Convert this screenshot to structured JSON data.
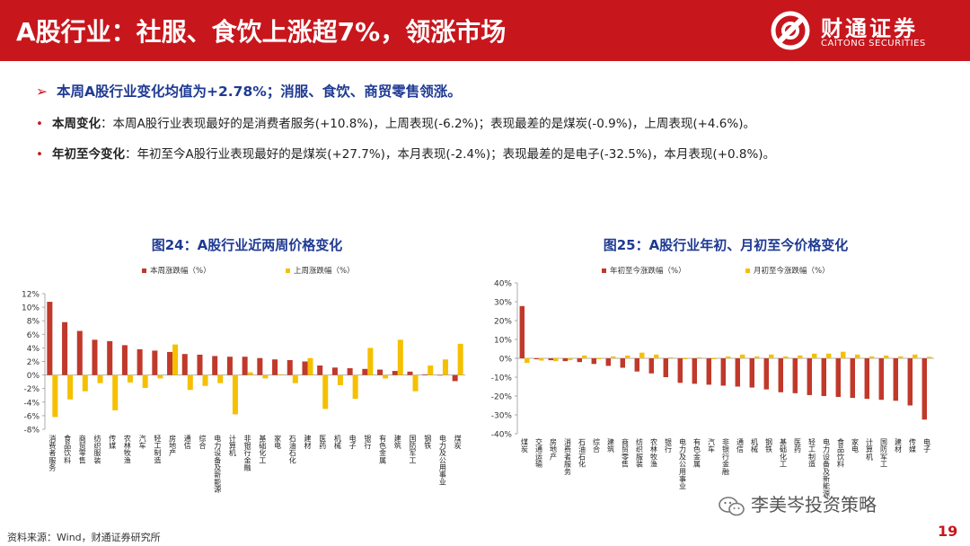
{
  "header": {
    "title": "A股行业：社服、食饮上涨超7%，领涨市场",
    "logo_cn": "财通证券",
    "logo_en": "CAITONG SECURITIES"
  },
  "summary": {
    "arrow": "➢",
    "text": "本周A股行业变化均值为+2.78%；消服、食饮、商贸零售领涨。"
  },
  "bullets": [
    {
      "dot": "•",
      "lead": "本周变化",
      "text": "：本周A股行业表现最好的是消费者服务(+10.8%)，上周表现(-6.2%)；表现最差的是煤炭(-0.9%)，上周表现(+4.6%)。"
    },
    {
      "dot": "•",
      "lead": "年初至今变化",
      "text": "：年初至今A股行业表现最好的是煤炭(+27.7%)，本月表现(-2.4%)；表现最差的是电子(-32.5%)，本月表现(+0.8%)。"
    }
  ],
  "colors": {
    "red": "#c0392b",
    "yellow": "#f5c000",
    "brand": "#c8161d",
    "title_blue": "#1f3a93"
  },
  "chart_data": [
    {
      "type": "bar",
      "title": "图24：A股行业近两周价格变化",
      "categories": [
        "消费者服务",
        "食品饮料",
        "商贸零售",
        "纺织服装",
        "传媒",
        "农林牧渔",
        "汽车",
        "轻工制造",
        "房地产",
        "通信",
        "综合",
        "电力设备及新能源",
        "计算机",
        "非银行金融",
        "基础化工",
        "家电",
        "石油石化",
        "建材",
        "医药",
        "机械",
        "电子",
        "银行",
        "有色金属",
        "建筑",
        "国防军工",
        "钢铁",
        "电力及公用事业",
        "煤炭"
      ],
      "series": [
        {
          "name": "本周涨跌幅（%）",
          "color": "#c0392b",
          "values": [
            10.8,
            7.8,
            6.5,
            5.2,
            5.0,
            4.4,
            3.8,
            3.6,
            3.4,
            3.1,
            3.0,
            2.8,
            2.7,
            2.7,
            2.5,
            2.3,
            2.2,
            2.0,
            1.4,
            1.1,
            1.0,
            0.9,
            0.8,
            0.6,
            0.5,
            0.1,
            0.0,
            -0.9
          ]
        },
        {
          "name": "上周涨跌幅（%）",
          "color": "#f5c000",
          "values": [
            -6.2,
            -3.6,
            -2.4,
            -1.2,
            -5.2,
            -1.1,
            -1.9,
            -0.5,
            4.5,
            -2.2,
            -1.6,
            -1.2,
            -5.8,
            0.4,
            -0.5,
            0.1,
            -1.2,
            2.5,
            -5.0,
            -1.5,
            -3.5,
            4.0,
            -0.5,
            5.2,
            -2.4,
            1.4,
            2.3,
            4.6
          ]
        }
      ],
      "yticks": [
        "12%",
        "10%",
        "8%",
        "6%",
        "4%",
        "2%",
        "0%",
        "-2%",
        "-4%",
        "-6%",
        "-8%"
      ],
      "ylim": [
        -8,
        12
      ]
    },
    {
      "type": "bar",
      "title": "图25：A股行业年初、月初至今价格变化",
      "categories": [
        "煤炭",
        "交通运输",
        "房地产",
        "消费者服务",
        "石油石化",
        "综合",
        "建筑",
        "商贸零售",
        "纺织服装",
        "农林牧渔",
        "银行",
        "电力及公用事业",
        "有色金属",
        "汽车",
        "非银行金融",
        "通信",
        "机械",
        "钢铁",
        "基础化工",
        "医药",
        "轻工制造",
        "电力设备及新能源",
        "食品饮料",
        "家电",
        "计算机",
        "国防军工",
        "建材",
        "传媒",
        "电子"
      ],
      "series": [
        {
          "name": "年初至今涨跌幅（%）",
          "color": "#c0392b",
          "values": [
            27.7,
            -0.5,
            -1.0,
            -1.5,
            -2.0,
            -3.0,
            -4.0,
            -5.0,
            -7.0,
            -8.0,
            -10.0,
            -13.0,
            -13.5,
            -14.0,
            -14.5,
            -15.0,
            -15.5,
            -16.5,
            -18.0,
            -18.5,
            -19.5,
            -20.0,
            -20.5,
            -21.0,
            -21.5,
            -22.0,
            -22.5,
            -25.0,
            -32.5
          ]
        },
        {
          "name": "月初至今涨跌幅（%）",
          "color": "#f5c000",
          "values": [
            -2.4,
            -1.2,
            -1.5,
            -1.0,
            1.5,
            -0.5,
            1.0,
            1.5,
            3.0,
            2.0,
            0.5,
            -0.5,
            0.5,
            -0.5,
            1.0,
            2.0,
            1.0,
            2.0,
            1.0,
            1.5,
            2.5,
            2.5,
            3.5,
            2.0,
            1.0,
            1.5,
            1.0,
            2.0,
            0.8
          ]
        }
      ],
      "yticks": [
        "40%",
        "30%",
        "20%",
        "10%",
        "0%",
        "-10%",
        "-20%",
        "-30%",
        "-40%"
      ],
      "ylim": [
        -40,
        40
      ]
    }
  ],
  "source": "资料来源：Wind，财通证券研究所",
  "watermark": "李美岑投资策略",
  "page_number": "19"
}
